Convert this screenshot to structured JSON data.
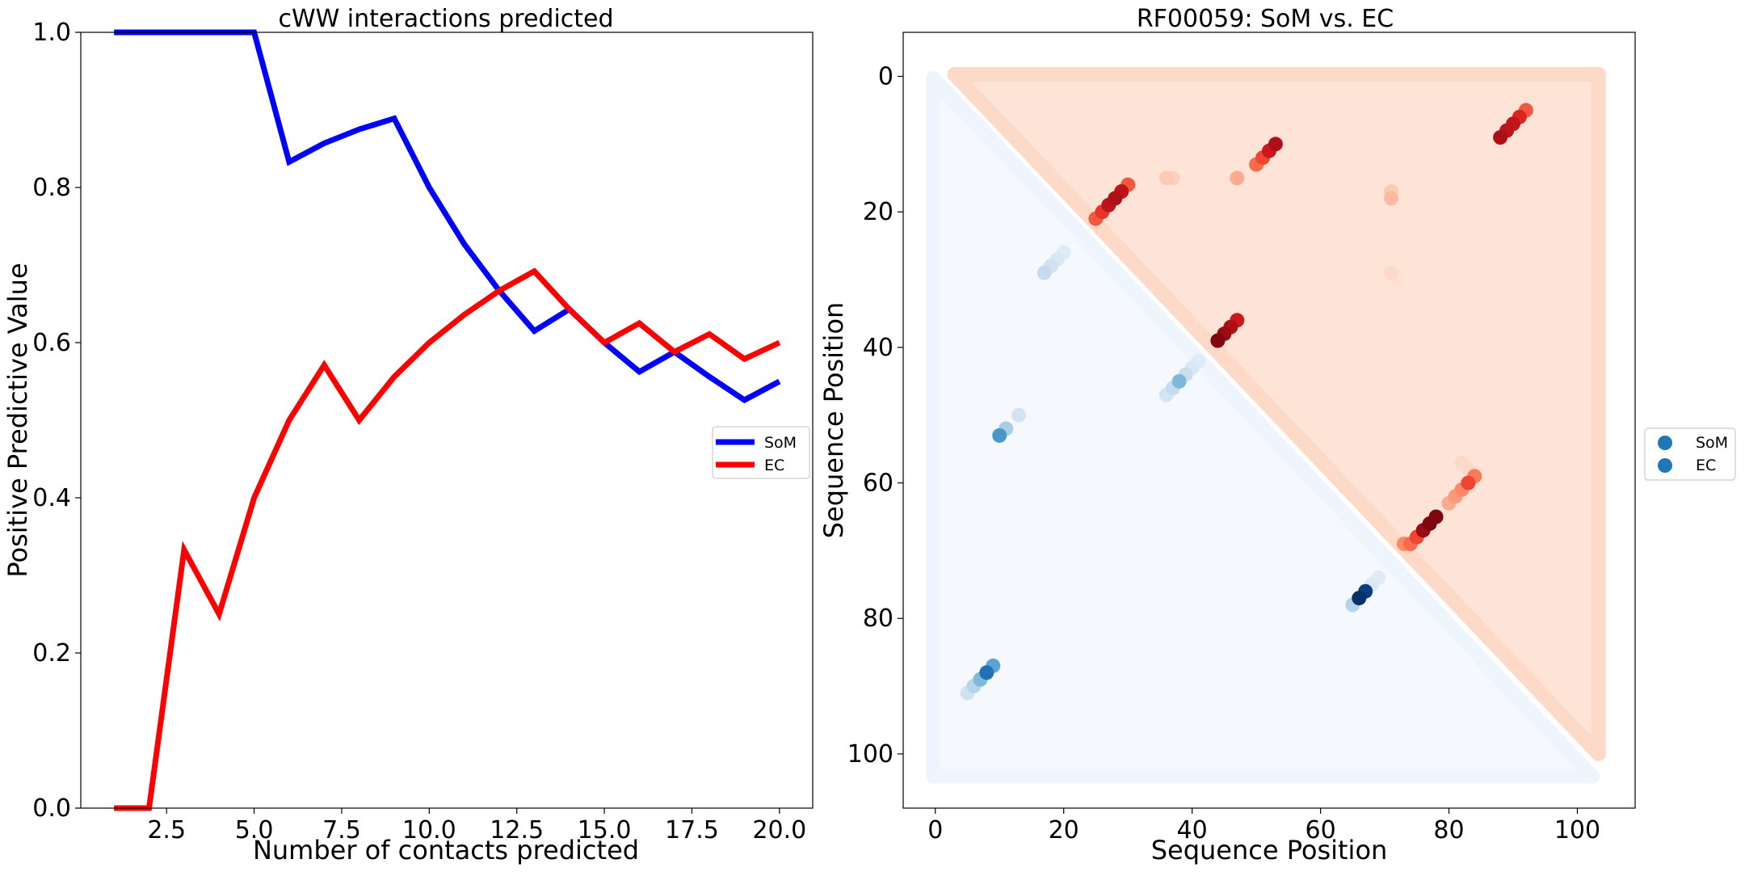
{
  "chart_data": [
    {
      "type": "line",
      "title": "cWW interactions predicted",
      "xlabel": "Number of contacts predicted",
      "ylabel": "Positive Predictive Value",
      "xlim": [
        0.05,
        20.95
      ],
      "ylim": [
        0.0,
        1.0
      ],
      "xticks": [
        "2.5",
        "5.0",
        "7.5",
        "10.0",
        "12.5",
        "15.0",
        "17.5",
        "20.0"
      ],
      "xtick_values": [
        2.5,
        5.0,
        7.5,
        10.0,
        12.5,
        15.0,
        17.5,
        20.0
      ],
      "yticks": [
        "0.0",
        "0.2",
        "0.4",
        "0.6",
        "0.8",
        "1.0"
      ],
      "ytick_values": [
        0.0,
        0.2,
        0.4,
        0.6,
        0.8,
        1.0
      ],
      "grid": false,
      "legend": "right",
      "x": [
        1,
        2,
        3,
        4,
        5,
        6,
        7,
        8,
        9,
        10,
        11,
        12,
        13,
        14,
        15,
        16,
        17,
        18,
        19,
        20
      ],
      "series": [
        {
          "name": "SoM",
          "color": "#0000ff",
          "values": [
            1.0,
            1.0,
            1.0,
            1.0,
            1.0,
            0.833,
            0.857,
            0.875,
            0.889,
            0.8,
            0.727,
            0.667,
            0.615,
            0.643,
            0.6,
            0.5625,
            0.588,
            0.556,
            0.526,
            0.55
          ]
        },
        {
          "name": "EC",
          "color": "#ff0000",
          "values": [
            0.0,
            0.0,
            0.333,
            0.25,
            0.4,
            0.5,
            0.571,
            0.5,
            0.556,
            0.6,
            0.636,
            0.667,
            0.692,
            0.643,
            0.6,
            0.625,
            0.588,
            0.611,
            0.579,
            0.6
          ]
        }
      ]
    },
    {
      "type": "scatter",
      "title": "RF00059: SoM vs. EC",
      "xlabel": "Sequence Position",
      "ylabel": "Sequence Position",
      "xlim": [
        -5,
        109
      ],
      "ylim": [
        108,
        -6.5
      ],
      "xticks": [
        "0",
        "20",
        "40",
        "60",
        "80",
        "100"
      ],
      "xtick_values": [
        0,
        20,
        40,
        60,
        80,
        100
      ],
      "yticks": [
        "0",
        "20",
        "40",
        "60",
        "80",
        "100"
      ],
      "ytick_values": [
        0,
        20,
        40,
        60,
        80,
        100
      ],
      "grid": false,
      "legend": "right",
      "background_range": [
        0,
        103
      ],
      "series": [
        {
          "name": "SoM",
          "color": "#1f77b4",
          "colormap": "Blues",
          "points": [
            [
              8,
              88,
              0.75
            ],
            [
              9,
              87,
              0.55
            ],
            [
              7,
              89,
              0.45
            ],
            [
              6,
              90,
              0.3
            ],
            [
              5,
              91,
              0.2
            ],
            [
              10,
              53,
              0.6
            ],
            [
              11,
              52,
              0.35
            ],
            [
              13,
              50,
              0.18
            ],
            [
              17,
              29,
              0.25
            ],
            [
              18,
              28,
              0.2
            ],
            [
              19,
              27,
              0.15
            ],
            [
              20,
              26,
              0.12
            ],
            [
              38,
              45,
              0.45
            ],
            [
              37,
              46,
              0.25
            ],
            [
              36,
              47,
              0.18
            ],
            [
              39,
              44,
              0.22
            ],
            [
              40,
              43,
              0.15
            ],
            [
              41,
              42,
              0.12
            ],
            [
              66,
              77,
              1.0
            ],
            [
              67,
              76,
              0.95
            ],
            [
              65,
              78,
              0.3
            ],
            [
              68,
              75,
              0.15
            ],
            [
              69,
              74,
              0.12
            ]
          ]
        },
        {
          "name": "EC",
          "color": "#1f77b4",
          "colormap": "Reds",
          "points": [
            [
              25,
              21,
              0.55
            ],
            [
              26,
              20,
              0.65
            ],
            [
              27,
              19,
              0.8
            ],
            [
              28,
              18,
              0.85
            ],
            [
              29,
              17,
              0.8
            ],
            [
              30,
              16,
              0.55
            ],
            [
              36,
              15,
              0.2
            ],
            [
              37,
              15,
              0.18
            ],
            [
              47,
              15,
              0.3
            ],
            [
              50,
              13,
              0.5
            ],
            [
              51,
              12,
              0.6
            ],
            [
              52,
              11,
              0.75
            ],
            [
              53,
              10,
              0.85
            ],
            [
              88,
              9,
              0.85
            ],
            [
              89,
              8,
              0.8
            ],
            [
              90,
              7,
              0.78
            ],
            [
              91,
              6,
              0.7
            ],
            [
              92,
              5,
              0.55
            ],
            [
              44,
              39,
              0.95
            ],
            [
              45,
              38,
              0.9
            ],
            [
              46,
              37,
              0.85
            ],
            [
              47,
              36,
              0.75
            ],
            [
              71,
              17,
              0.2
            ],
            [
              71,
              18,
              0.25
            ],
            [
              71,
              29,
              0.15
            ],
            [
              72,
              30,
              0.12
            ],
            [
              82,
              57,
              0.15
            ],
            [
              83,
              58,
              0.15
            ],
            [
              83,
              60,
              0.6
            ],
            [
              84,
              59,
              0.45
            ],
            [
              82,
              61,
              0.4
            ],
            [
              81,
              62,
              0.35
            ],
            [
              80,
              63,
              0.3
            ],
            [
              78,
              65,
              0.95
            ],
            [
              77,
              66,
              0.95
            ],
            [
              76,
              67,
              0.9
            ],
            [
              75,
              68,
              0.6
            ],
            [
              74,
              69,
              0.5
            ],
            [
              73,
              69,
              0.4
            ]
          ]
        }
      ]
    }
  ]
}
